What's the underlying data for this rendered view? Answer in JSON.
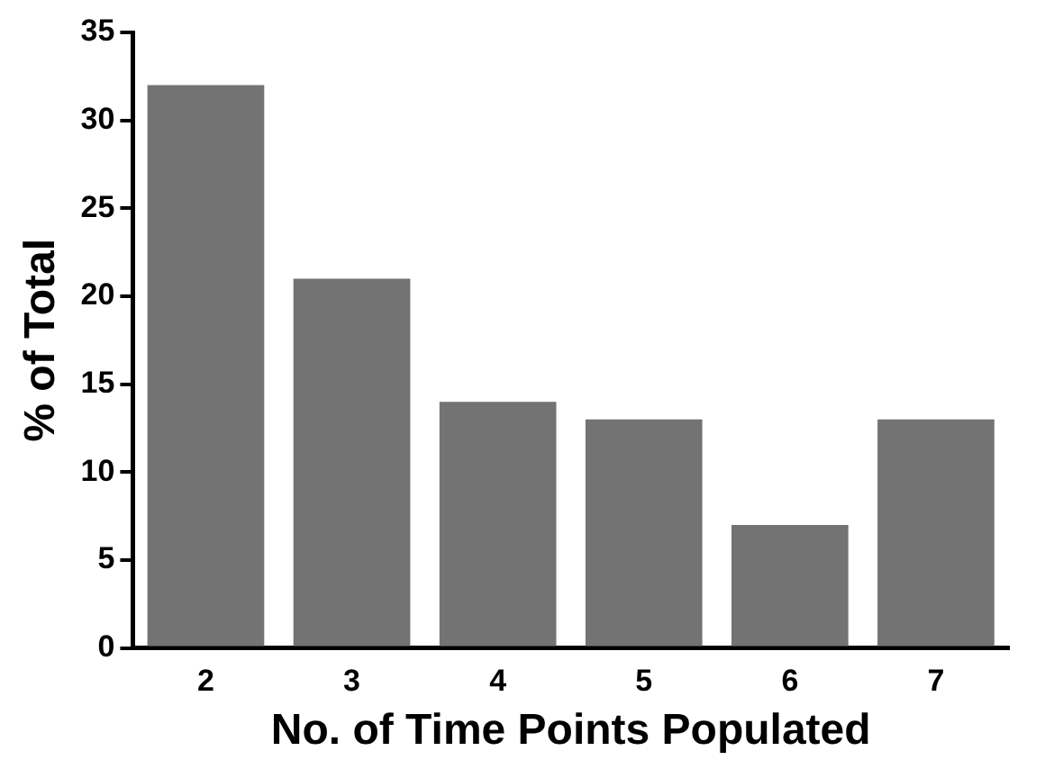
{
  "chart_data": {
    "type": "bar",
    "xlabel": "No. of Time Points Populated",
    "ylabel": "% of Total",
    "categories": [
      "2",
      "3",
      "4",
      "5",
      "6",
      "7"
    ],
    "values": [
      32,
      21,
      14,
      13,
      7,
      13
    ],
    "color": "#737373",
    "ylim": [
      0,
      35
    ],
    "yticks": [
      0,
      5,
      10,
      15,
      20,
      25,
      30,
      35
    ],
    "grid": false,
    "legend": false
  }
}
